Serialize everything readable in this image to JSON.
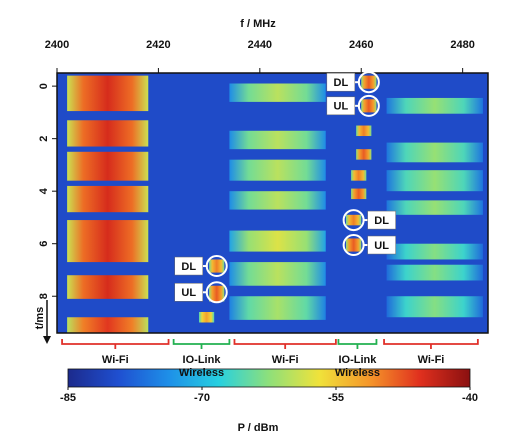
{
  "chart_data": {
    "type": "spectrogram",
    "x_label": "f / MHz",
    "y_label": "t/ms",
    "colorbar_label": "P / dBm",
    "xlim": [
      2400,
      2485
    ],
    "xticks": [
      2400,
      2420,
      2440,
      2460,
      2480
    ],
    "ylim": [
      -0.5,
      9.4
    ],
    "yticks": [
      0,
      2,
      4,
      6,
      8
    ],
    "clim": [
      -85,
      -40
    ],
    "cticks": [
      -85,
      -70,
      -55,
      -40
    ],
    "colormap": [
      "#1c2a8c",
      "#1f4fd0",
      "#1e8fe8",
      "#27d0e0",
      "#8ee07a",
      "#f0e23a",
      "#f5962a",
      "#e0301e",
      "#8a1010"
    ],
    "background": -80,
    "bursts": [
      {
        "f": [
          2402,
          2418
        ],
        "t": [
          -0.4,
          0.95
        ],
        "p": -45
      },
      {
        "f": [
          2402,
          2418
        ],
        "t": [
          1.3,
          2.3
        ],
        "p": -45
      },
      {
        "f": [
          2402,
          2418
        ],
        "t": [
          2.5,
          3.6
        ],
        "p": -45
      },
      {
        "f": [
          2402,
          2418
        ],
        "t": [
          3.8,
          4.8
        ],
        "p": -45
      },
      {
        "f": [
          2402,
          2418
        ],
        "t": [
          5.1,
          6.7
        ],
        "p": -45
      },
      {
        "f": [
          2402,
          2418
        ],
        "t": [
          7.2,
          8.1
        ],
        "p": -45
      },
      {
        "f": [
          2402,
          2418
        ],
        "t": [
          8.8,
          9.4
        ],
        "p": -46
      },
      {
        "f": [
          2434,
          2453
        ],
        "t": [
          -0.1,
          0.6
        ],
        "p": -60
      },
      {
        "f": [
          2434,
          2453
        ],
        "t": [
          1.7,
          2.4
        ],
        "p": -60
      },
      {
        "f": [
          2434,
          2453
        ],
        "t": [
          2.8,
          3.6
        ],
        "p": -60
      },
      {
        "f": [
          2434,
          2453
        ],
        "t": [
          4.0,
          4.7
        ],
        "p": -60
      },
      {
        "f": [
          2434,
          2453
        ],
        "t": [
          5.5,
          6.3
        ],
        "p": -58
      },
      {
        "f": [
          2434,
          2453
        ],
        "t": [
          6.7,
          7.6
        ],
        "p": -60
      },
      {
        "f": [
          2434,
          2453
        ],
        "t": [
          8.0,
          8.9
        ],
        "p": -61
      },
      {
        "f": [
          2465,
          2484
        ],
        "t": [
          0.45,
          1.05
        ],
        "p": -62
      },
      {
        "f": [
          2465,
          2484
        ],
        "t": [
          2.15,
          2.9
        ],
        "p": -62
      },
      {
        "f": [
          2465,
          2484
        ],
        "t": [
          3.2,
          4.0
        ],
        "p": -62
      },
      {
        "f": [
          2465,
          2484
        ],
        "t": [
          4.35,
          4.9
        ],
        "p": -62
      },
      {
        "f": [
          2465,
          2484
        ],
        "t": [
          6.0,
          6.6
        ],
        "p": -63
      },
      {
        "f": [
          2465,
          2484
        ],
        "t": [
          6.8,
          7.4
        ],
        "p": -63
      },
      {
        "f": [
          2465,
          2484
        ],
        "t": [
          8.0,
          8.8
        ],
        "p": -63
      },
      {
        "f": [
          2460,
          2463
        ],
        "t": [
          -0.4,
          0.1
        ],
        "p": -48
      },
      {
        "f": [
          2460,
          2463
        ],
        "t": [
          0.5,
          1.0
        ],
        "p": -48
      },
      {
        "f": [
          2459,
          2462
        ],
        "t": [
          1.5,
          1.9
        ],
        "p": -50
      },
      {
        "f": [
          2459,
          2462
        ],
        "t": [
          2.4,
          2.8
        ],
        "p": -48
      },
      {
        "f": [
          2458,
          2461
        ],
        "t": [
          3.2,
          3.6
        ],
        "p": -50
      },
      {
        "f": [
          2458,
          2461
        ],
        "t": [
          3.9,
          4.3
        ],
        "p": -48
      },
      {
        "f": [
          2457,
          2460
        ],
        "t": [
          4.9,
          5.3
        ],
        "p": -50
      },
      {
        "f": [
          2457,
          2460
        ],
        "t": [
          5.8,
          6.3
        ],
        "p": -48
      },
      {
        "f": [
          2430,
          2433
        ],
        "t": [
          6.6,
          7.1
        ],
        "p": -50
      },
      {
        "f": [
          2430,
          2433
        ],
        "t": [
          7.6,
          8.2
        ],
        "p": -48
      },
      {
        "f": [
          2428,
          2431
        ],
        "t": [
          8.6,
          9.0
        ],
        "p": -52
      }
    ],
    "markers": [
      {
        "label": "DL",
        "f": 2461.5,
        "t": -0.15
      },
      {
        "label": "UL",
        "f": 2461.5,
        "t": 0.75
      },
      {
        "label": "DL",
        "f": 2458.5,
        "t": 5.1
      },
      {
        "label": "UL",
        "f": 2458.5,
        "t": 6.05
      },
      {
        "label": "DL",
        "f": 2431.5,
        "t": 6.85
      },
      {
        "label": "UL",
        "f": 2431.5,
        "t": 7.85
      }
    ],
    "bands": [
      {
        "label": "Wi-Fi",
        "f": [
          2401,
          2422
        ],
        "color": "#e0302a"
      },
      {
        "label": "IO-Link Wireless",
        "f": [
          2423,
          2434
        ],
        "color": "#22b050"
      },
      {
        "label": "Wi-Fi",
        "f": [
          2435,
          2455
        ],
        "color": "#e0302a"
      },
      {
        "label": "IO-Link Wireless",
        "f": [
          2455.5,
          2463
        ],
        "color": "#22b050"
      },
      {
        "label": "Wi-Fi",
        "f": [
          2464.5,
          2483
        ],
        "color": "#e0302a"
      }
    ]
  }
}
